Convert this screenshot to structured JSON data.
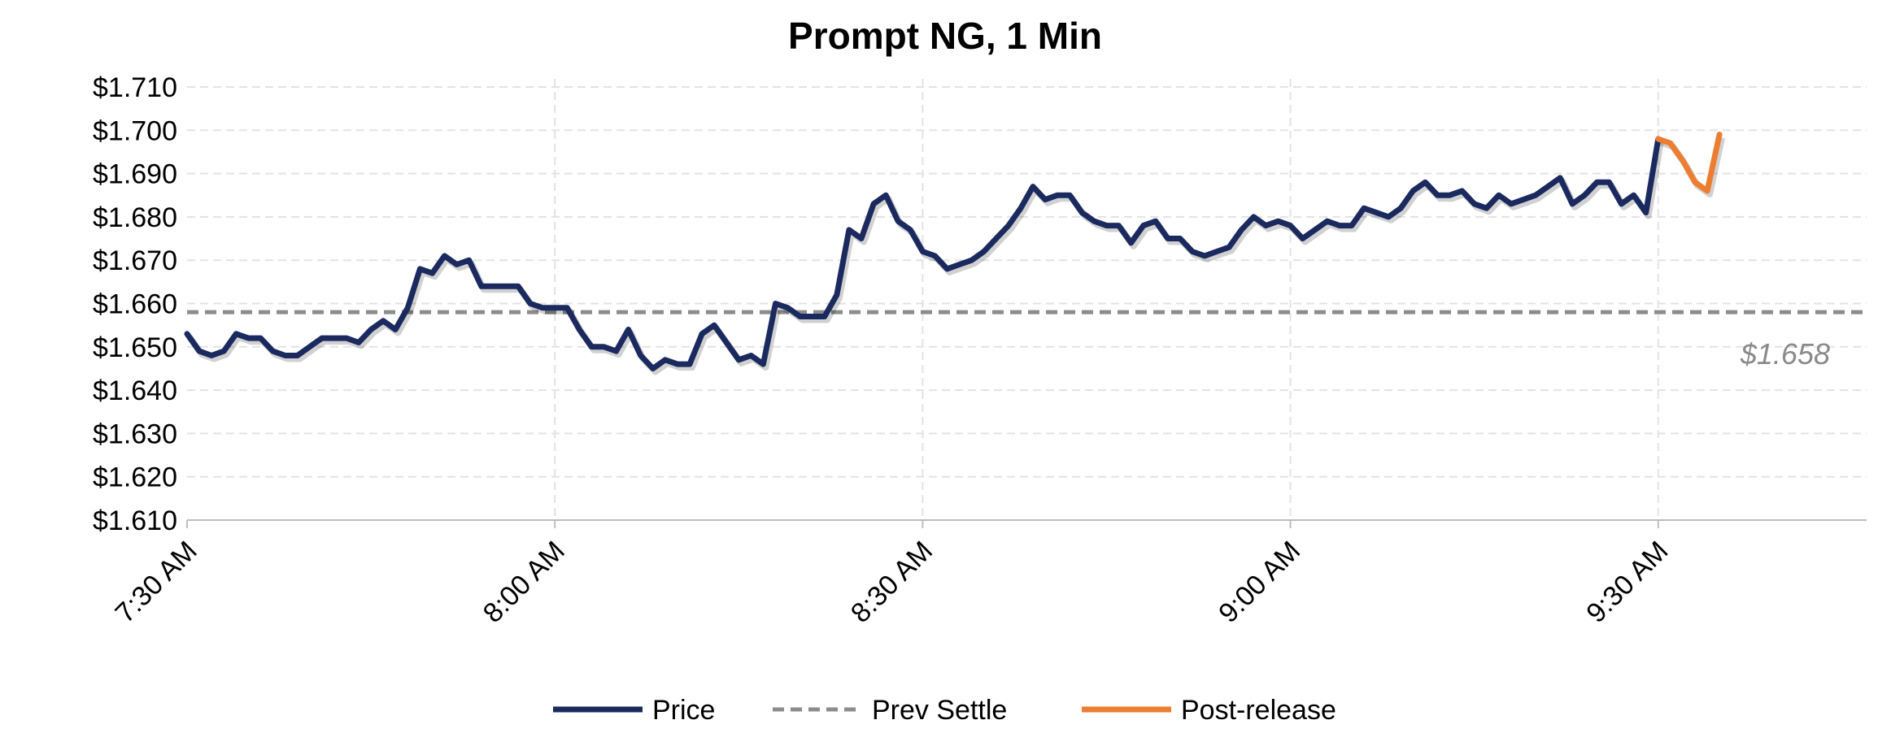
{
  "chart_data": {
    "type": "line",
    "title": "Prompt NG, 1 Min",
    "xlabel": "",
    "ylabel": "",
    "ylim": [
      1.61,
      1.71
    ],
    "y_ticks": [
      "$1.710",
      "$1.700",
      "$1.690",
      "$1.680",
      "$1.670",
      "$1.660",
      "$1.650",
      "$1.640",
      "$1.630",
      "$1.620",
      "$1.610"
    ],
    "y_tick_values": [
      1.71,
      1.7,
      1.69,
      1.68,
      1.67,
      1.66,
      1.65,
      1.64,
      1.63,
      1.62,
      1.61
    ],
    "x_range_minutes": [
      0,
      137
    ],
    "x_ticks": [
      "7:30 AM",
      "8:00 AM",
      "8:30 AM",
      "9:00 AM",
      "9:30 AM"
    ],
    "x_tick_minutes": [
      0,
      30,
      60,
      90,
      120
    ],
    "grid": true,
    "legend_position": "bottom",
    "colors": {
      "price": "#1b2a5e",
      "prev_settle": "#8c8c8c",
      "post_release": "#ed7d31"
    },
    "series": [
      {
        "name": "Price",
        "x_start_minute": 0,
        "values": [
          1.653,
          1.649,
          1.648,
          1.649,
          1.653,
          1.652,
          1.652,
          1.649,
          1.648,
          1.648,
          1.65,
          1.652,
          1.652,
          1.652,
          1.651,
          1.654,
          1.656,
          1.654,
          1.659,
          1.668,
          1.667,
          1.671,
          1.669,
          1.67,
          1.664,
          1.664,
          1.664,
          1.664,
          1.66,
          1.659,
          1.659,
          1.659,
          1.654,
          1.65,
          1.65,
          1.649,
          1.654,
          1.648,
          1.645,
          1.647,
          1.646,
          1.646,
          1.653,
          1.655,
          1.651,
          1.647,
          1.648,
          1.646,
          1.66,
          1.659,
          1.657,
          1.657,
          1.657,
          1.662,
          1.677,
          1.675,
          1.683,
          1.685,
          1.679,
          1.677,
          1.672,
          1.671,
          1.668,
          1.669,
          1.67,
          1.672,
          1.675,
          1.678,
          1.682,
          1.687,
          1.684,
          1.685,
          1.685,
          1.681,
          1.679,
          1.678,
          1.678,
          1.674,
          1.678,
          1.679,
          1.675,
          1.675,
          1.672,
          1.671,
          1.672,
          1.673,
          1.677,
          1.68,
          1.678,
          1.679,
          1.678,
          1.675,
          1.677,
          1.679,
          1.678,
          1.678,
          1.682,
          1.681,
          1.68,
          1.682,
          1.686,
          1.688,
          1.685,
          1.685,
          1.686,
          1.683,
          1.682,
          1.685,
          1.683,
          1.684,
          1.685,
          1.687,
          1.689,
          1.683,
          1.685,
          1.688,
          1.688,
          1.683,
          1.685,
          1.681,
          1.698
        ]
      },
      {
        "name": "Prev Settle",
        "value": 1.658,
        "label": "$1.658"
      },
      {
        "name": "Post-release",
        "x_start_minute": 120,
        "values": [
          1.698,
          1.697,
          1.693,
          1.688,
          1.686,
          1.699
        ]
      }
    ]
  }
}
